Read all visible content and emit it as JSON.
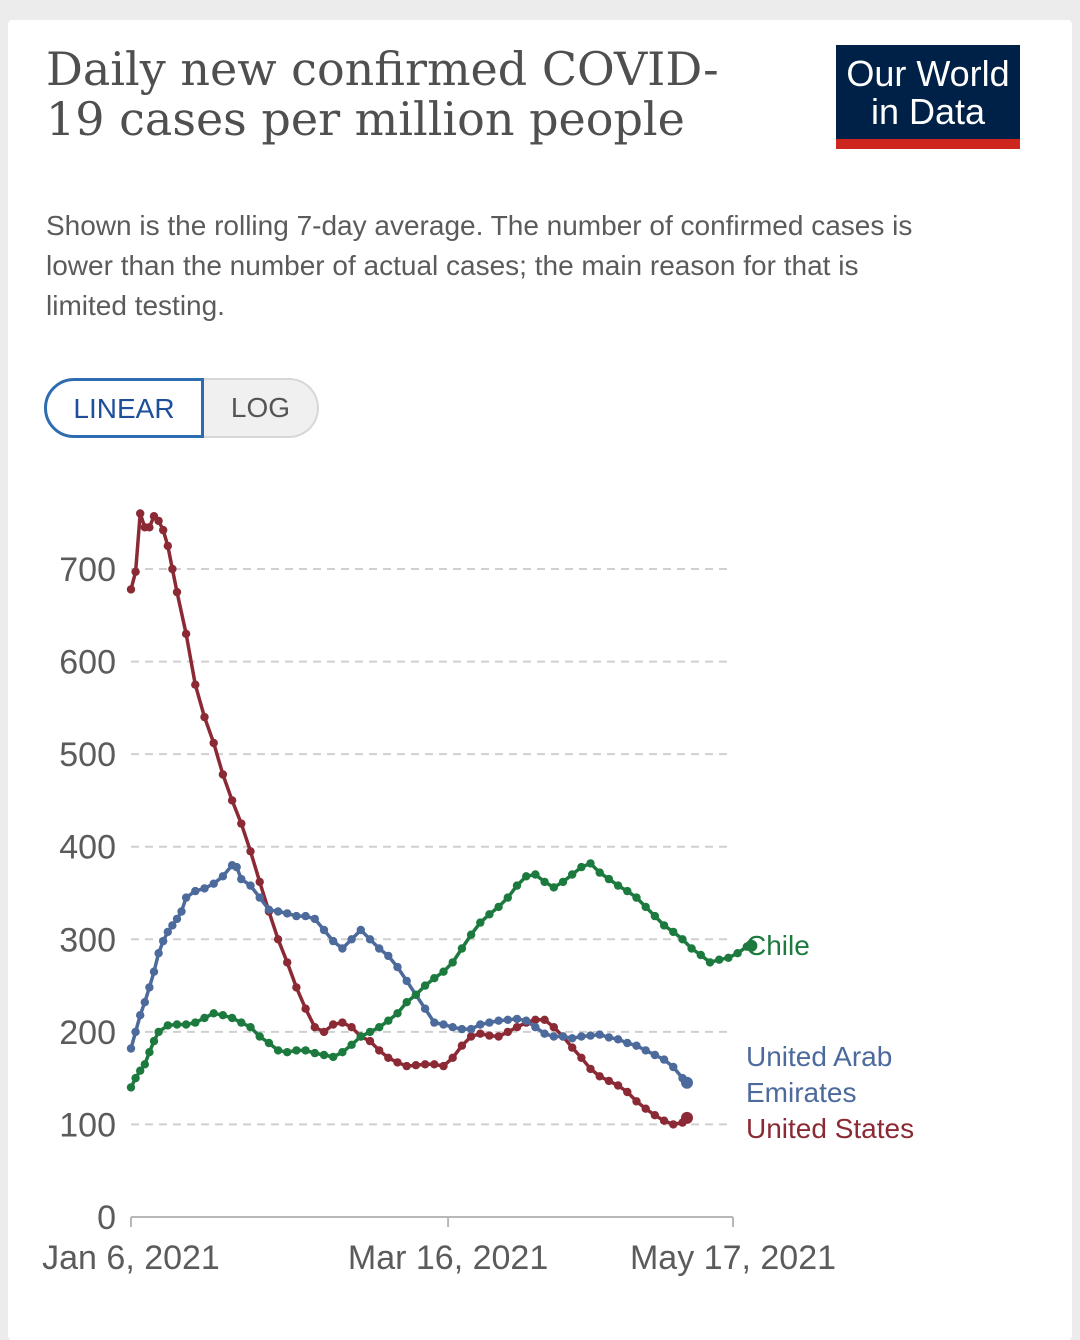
{
  "header": {
    "title": "Daily new confirmed COVID-19 cases per million people",
    "subtitle": "Shown is the rolling 7-day average. The number of confirmed cases is lower than the number of actual cases; the main reason for that is limited testing.",
    "logo_line1": "Our World",
    "logo_line2": "in Data",
    "logo_colors": {
      "background": "#002147",
      "stripe": "#ce261e"
    }
  },
  "controls": {
    "linear_label": "LINEAR",
    "log_label": "LOG",
    "selected": "LINEAR"
  },
  "chart_data": {
    "type": "line",
    "title": "Daily new confirmed COVID-19 cases per million people",
    "xlabel": "",
    "ylabel": "",
    "ylim": [
      0,
      700
    ],
    "yticks": [
      0,
      100,
      200,
      300,
      400,
      500,
      600,
      700
    ],
    "x_ticks": [
      "Jan 6, 2021",
      "Mar 16, 2021",
      "May 17, 2021"
    ],
    "x_tick_days": [
      0,
      69,
      131
    ],
    "x_range_days": [
      0,
      131
    ],
    "grid": true,
    "series": [
      {
        "name": "United States",
        "color": "#8b2a34",
        "points": [
          [
            0,
            678
          ],
          [
            1,
            697
          ],
          [
            2,
            760
          ],
          [
            3,
            745
          ],
          [
            4,
            745
          ],
          [
            5,
            757
          ],
          [
            6,
            752
          ],
          [
            7,
            742
          ],
          [
            8,
            725
          ],
          [
            9,
            700
          ],
          [
            10,
            675
          ],
          [
            12,
            630
          ],
          [
            14,
            575
          ],
          [
            16,
            540
          ],
          [
            18,
            512
          ],
          [
            20,
            478
          ],
          [
            22,
            450
          ],
          [
            24,
            425
          ],
          [
            26,
            395
          ],
          [
            28,
            362
          ],
          [
            30,
            330
          ],
          [
            32,
            300
          ],
          [
            34,
            275
          ],
          [
            36,
            248
          ],
          [
            38,
            225
          ],
          [
            40,
            205
          ],
          [
            42,
            200
          ],
          [
            44,
            208
          ],
          [
            46,
            210
          ],
          [
            48,
            205
          ],
          [
            50,
            195
          ],
          [
            52,
            190
          ],
          [
            54,
            180
          ],
          [
            56,
            172
          ],
          [
            58,
            167
          ],
          [
            60,
            163
          ],
          [
            62,
            164
          ],
          [
            64,
            165
          ],
          [
            66,
            165
          ],
          [
            68,
            163
          ],
          [
            70,
            172
          ],
          [
            72,
            185
          ],
          [
            74,
            195
          ],
          [
            76,
            198
          ],
          [
            78,
            196
          ],
          [
            80,
            195
          ],
          [
            82,
            200
          ],
          [
            84,
            205
          ],
          [
            86,
            210
          ],
          [
            88,
            213
          ],
          [
            90,
            213
          ],
          [
            92,
            205
          ],
          [
            94,
            195
          ],
          [
            96,
            183
          ],
          [
            98,
            172
          ],
          [
            100,
            160
          ],
          [
            102,
            152
          ],
          [
            104,
            147
          ],
          [
            106,
            142
          ],
          [
            108,
            135
          ],
          [
            110,
            125
          ],
          [
            112,
            117
          ],
          [
            114,
            110
          ],
          [
            116,
            104
          ],
          [
            118,
            100
          ],
          [
            120,
            102
          ],
          [
            121,
            107
          ]
        ]
      },
      {
        "name": "United Arab Emirates",
        "color": "#4c6a9c",
        "points": [
          [
            0,
            182
          ],
          [
            1,
            200
          ],
          [
            2,
            218
          ],
          [
            3,
            232
          ],
          [
            4,
            248
          ],
          [
            5,
            265
          ],
          [
            6,
            285
          ],
          [
            7,
            298
          ],
          [
            8,
            308
          ],
          [
            9,
            315
          ],
          [
            10,
            322
          ],
          [
            11,
            330
          ],
          [
            12,
            345
          ],
          [
            14,
            352
          ],
          [
            16,
            355
          ],
          [
            18,
            360
          ],
          [
            20,
            368
          ],
          [
            22,
            380
          ],
          [
            23,
            378
          ],
          [
            24,
            365
          ],
          [
            26,
            358
          ],
          [
            28,
            345
          ],
          [
            30,
            332
          ],
          [
            32,
            330
          ],
          [
            34,
            328
          ],
          [
            36,
            325
          ],
          [
            38,
            325
          ],
          [
            40,
            322
          ],
          [
            42,
            310
          ],
          [
            44,
            298
          ],
          [
            46,
            290
          ],
          [
            48,
            300
          ],
          [
            50,
            310
          ],
          [
            52,
            300
          ],
          [
            54,
            290
          ],
          [
            56,
            282
          ],
          [
            58,
            270
          ],
          [
            60,
            255
          ],
          [
            62,
            240
          ],
          [
            64,
            225
          ],
          [
            66,
            210
          ],
          [
            68,
            208
          ],
          [
            70,
            205
          ],
          [
            72,
            203
          ],
          [
            74,
            203
          ],
          [
            76,
            208
          ],
          [
            78,
            210
          ],
          [
            80,
            212
          ],
          [
            82,
            213
          ],
          [
            84,
            214
          ],
          [
            86,
            212
          ],
          [
            88,
            205
          ],
          [
            90,
            198
          ],
          [
            92,
            195
          ],
          [
            94,
            195
          ],
          [
            96,
            193
          ],
          [
            98,
            195
          ],
          [
            100,
            196
          ],
          [
            102,
            197
          ],
          [
            104,
            194
          ],
          [
            106,
            192
          ],
          [
            108,
            188
          ],
          [
            110,
            185
          ],
          [
            112,
            180
          ],
          [
            114,
            175
          ],
          [
            116,
            170
          ],
          [
            118,
            162
          ],
          [
            120,
            150
          ],
          [
            121,
            145
          ]
        ]
      },
      {
        "name": "Chile",
        "color": "#1c7a3e",
        "points": [
          [
            0,
            140
          ],
          [
            1,
            150
          ],
          [
            2,
            158
          ],
          [
            3,
            165
          ],
          [
            4,
            178
          ],
          [
            5,
            190
          ],
          [
            6,
            200
          ],
          [
            8,
            207
          ],
          [
            10,
            208
          ],
          [
            12,
            208
          ],
          [
            14,
            210
          ],
          [
            16,
            215
          ],
          [
            18,
            220
          ],
          [
            20,
            218
          ],
          [
            22,
            215
          ],
          [
            24,
            210
          ],
          [
            26,
            205
          ],
          [
            28,
            195
          ],
          [
            30,
            188
          ],
          [
            32,
            180
          ],
          [
            34,
            178
          ],
          [
            36,
            180
          ],
          [
            38,
            180
          ],
          [
            40,
            177
          ],
          [
            42,
            175
          ],
          [
            44,
            173
          ],
          [
            46,
            178
          ],
          [
            48,
            186
          ],
          [
            50,
            195
          ],
          [
            52,
            200
          ],
          [
            54,
            205
          ],
          [
            56,
            212
          ],
          [
            58,
            220
          ],
          [
            60,
            232
          ],
          [
            62,
            240
          ],
          [
            64,
            250
          ],
          [
            66,
            258
          ],
          [
            68,
            265
          ],
          [
            70,
            275
          ],
          [
            72,
            290
          ],
          [
            74,
            305
          ],
          [
            76,
            318
          ],
          [
            78,
            327
          ],
          [
            80,
            335
          ],
          [
            82,
            345
          ],
          [
            84,
            358
          ],
          [
            86,
            368
          ],
          [
            88,
            370
          ],
          [
            90,
            362
          ],
          [
            92,
            356
          ],
          [
            94,
            362
          ],
          [
            96,
            370
          ],
          [
            98,
            378
          ],
          [
            100,
            382
          ],
          [
            102,
            372
          ],
          [
            104,
            365
          ],
          [
            106,
            358
          ],
          [
            108,
            352
          ],
          [
            110,
            345
          ],
          [
            112,
            335
          ],
          [
            114,
            325
          ],
          [
            116,
            315
          ],
          [
            118,
            308
          ],
          [
            120,
            300
          ],
          [
            122,
            290
          ],
          [
            124,
            283
          ],
          [
            126,
            275
          ],
          [
            128,
            278
          ],
          [
            130,
            280
          ],
          [
            132,
            285
          ],
          [
            134,
            292
          ],
          [
            135,
            293
          ]
        ]
      }
    ],
    "end_labels": [
      {
        "series": "Chile",
        "lines": [
          "Chile"
        ]
      },
      {
        "series": "United Arab Emirates",
        "lines": [
          "United Arab",
          "Emirates"
        ]
      },
      {
        "series": "United States",
        "lines": [
          "United States"
        ]
      }
    ]
  }
}
